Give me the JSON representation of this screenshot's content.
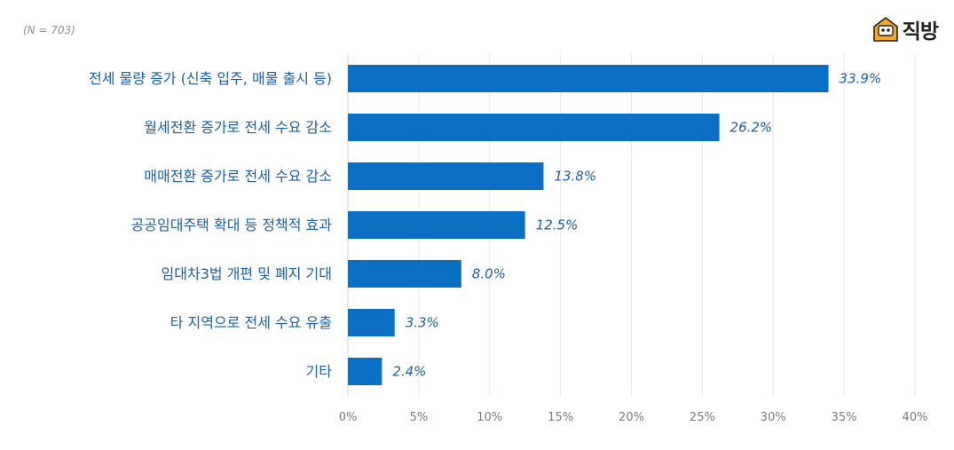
{
  "note": "(N = 703)",
  "logo": {
    "text": "직방",
    "icon": "house-face-icon",
    "color": "#f5a623"
  },
  "chart_data": {
    "type": "bar",
    "orientation": "horizontal",
    "categories": [
      "전세 물량 증가 (신축 입주, 매물 출시 등)",
      "월세전환 증가로 전세 수요 감소",
      "매매전환 증가로 전세 수요 감소",
      "공공임대주택 확대 등 정책적 효과",
      "임대차3법 개편 및 폐지 기대",
      "타 지역으로 전세 수요 유출",
      "기타"
    ],
    "values": [
      33.9,
      26.2,
      13.8,
      12.5,
      8.0,
      3.3,
      2.4
    ],
    "value_labels": [
      "33.9%",
      "26.2%",
      "13.8%",
      "12.5%",
      "8.0%",
      "3.3%",
      "2.4%"
    ],
    "xlim": [
      0,
      40
    ],
    "xticks": [
      0,
      5,
      10,
      15,
      20,
      25,
      30,
      35,
      40
    ],
    "xtick_labels": [
      "0%",
      "5%",
      "10%",
      "15%",
      "20%",
      "25%",
      "30%",
      "35%",
      "40%"
    ],
    "grid": true,
    "bar_color": "#0b6fc4",
    "label_color": "#1a5fa8",
    "grid_color": "#e6e6e6"
  }
}
